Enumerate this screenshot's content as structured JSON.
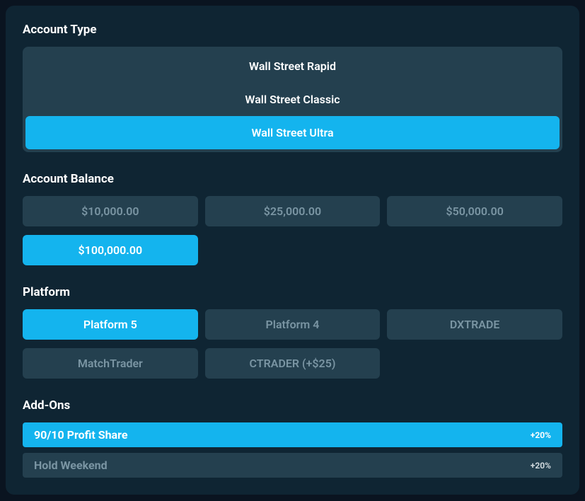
{
  "colors": {
    "page_bg": "#0a1420",
    "panel_bg": "#0f2533",
    "chip_bg": "#24404f",
    "chip_text": "#7a95a3",
    "accent": "#14b4ee",
    "text_primary": "#ffffff"
  },
  "sections": {
    "account_type": {
      "title": "Account Type",
      "options": [
        {
          "label": "Wall Street Rapid",
          "selected": false
        },
        {
          "label": "Wall Street Classic",
          "selected": false
        },
        {
          "label": "Wall Street Ultra",
          "selected": true
        }
      ]
    },
    "account_balance": {
      "title": "Account Balance",
      "options": [
        {
          "label": "$10,000.00",
          "selected": false
        },
        {
          "label": "$25,000.00",
          "selected": false
        },
        {
          "label": "$50,000.00",
          "selected": false
        },
        {
          "label": "$100,000.00",
          "selected": true
        }
      ]
    },
    "platform": {
      "title": "Platform",
      "options": [
        {
          "label": "Platform 5",
          "selected": true
        },
        {
          "label": "Platform 4",
          "selected": false
        },
        {
          "label": "DXTRADE",
          "selected": false
        },
        {
          "label": "MatchTrader",
          "selected": false
        },
        {
          "label": "CTRADER (+$25)",
          "selected": false
        }
      ]
    },
    "addons": {
      "title": "Add-Ons",
      "options": [
        {
          "label": "90/10 Profit Share",
          "badge": "+20%",
          "selected": true
        },
        {
          "label": "Hold Weekend",
          "badge": "+20%",
          "selected": false
        }
      ]
    }
  }
}
